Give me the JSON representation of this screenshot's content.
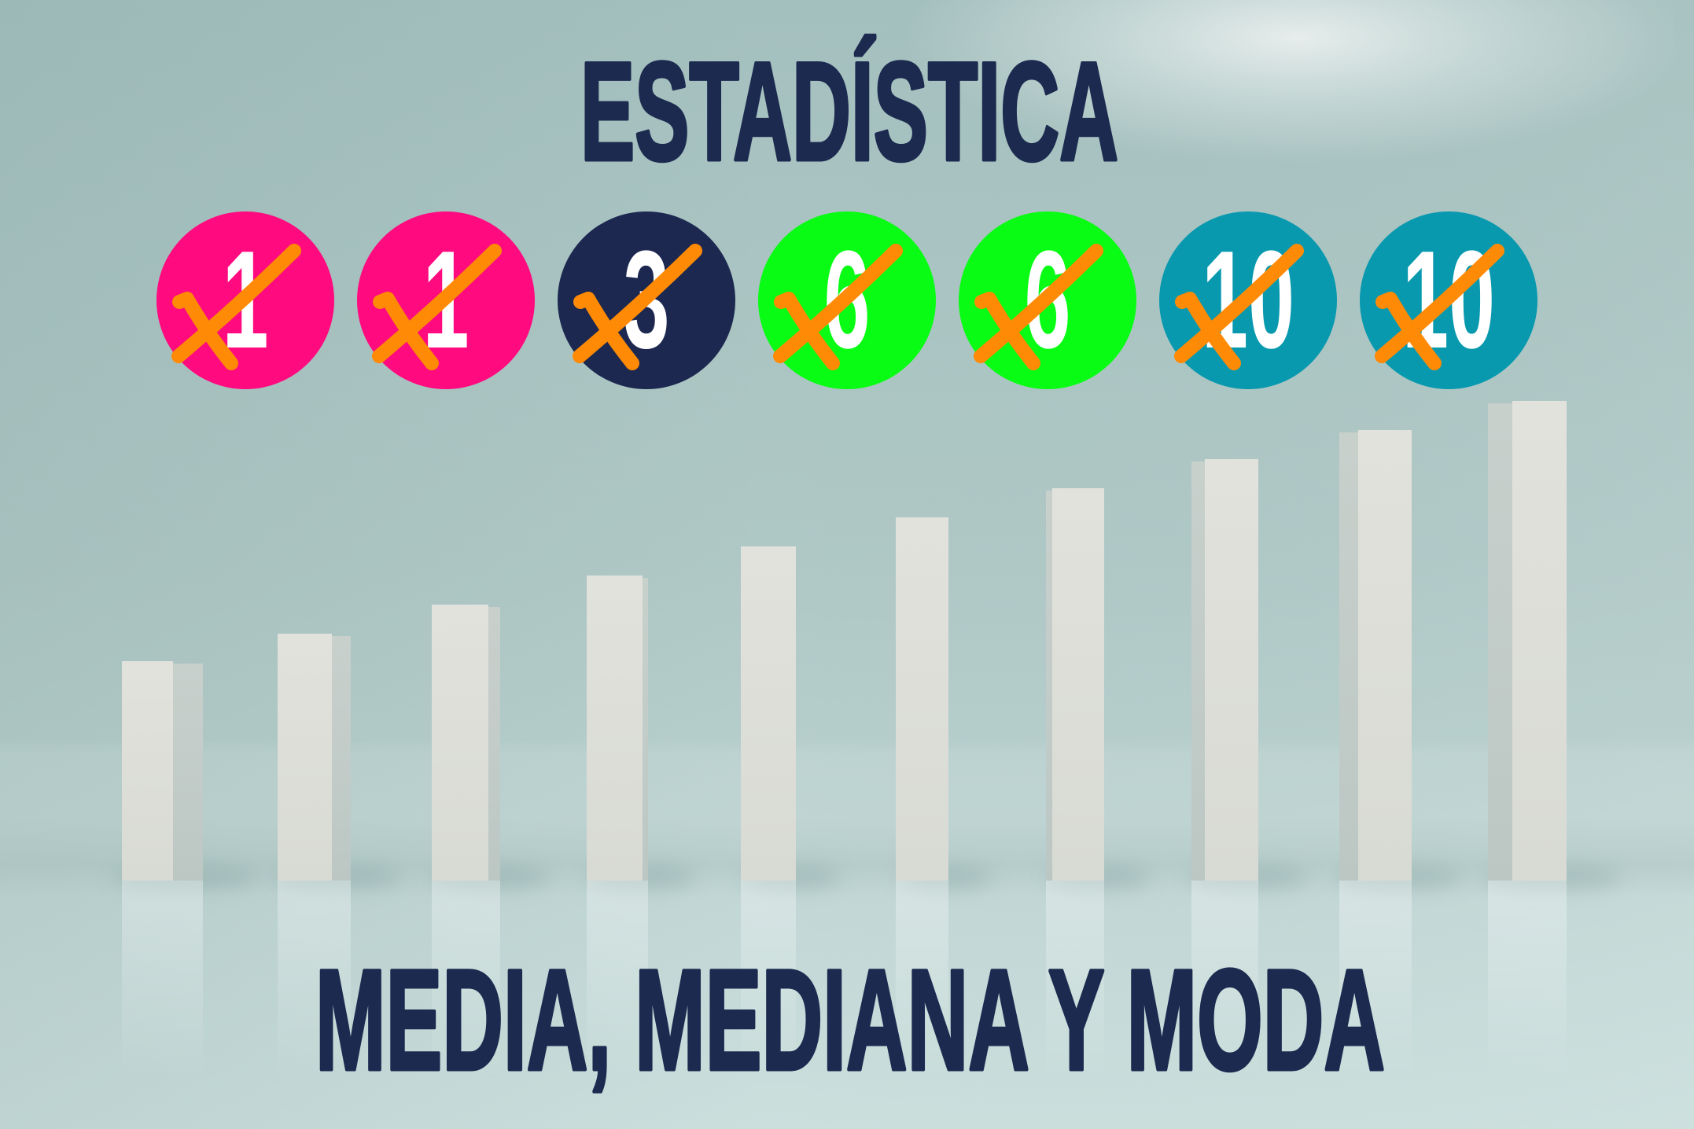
{
  "title": "ESTADÍSTICA",
  "subtitle": "MEDIA, MEDIANA Y MODA",
  "numbers": [
    {
      "value": "1",
      "color": "#FF0A7F",
      "crossed": true
    },
    {
      "value": "1",
      "color": "#FF0A7F",
      "crossed": true
    },
    {
      "value": "3",
      "color": "#1C2850",
      "crossed": true
    },
    {
      "value": "6",
      "color": "#08FC14",
      "crossed": true
    },
    {
      "value": "6",
      "color": "#08FC14",
      "crossed": true
    },
    {
      "value": "10",
      "color": "#0899AF",
      "crossed": true
    },
    {
      "value": "10",
      "color": "#0899AF",
      "crossed": true
    }
  ],
  "colors": {
    "heading": "#1C2A50",
    "number_text": "#FFFFFF",
    "cross_mark": "#FF8A05",
    "bar_face": "#DEDED8"
  }
}
